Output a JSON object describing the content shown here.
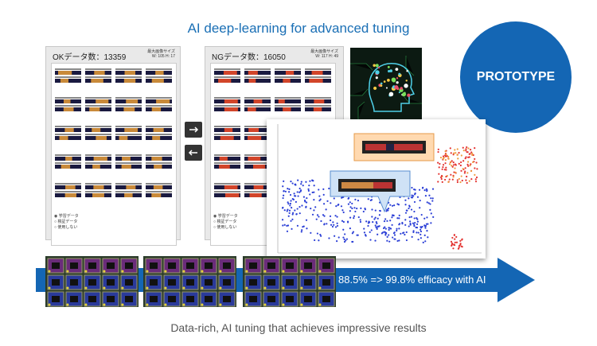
{
  "header": {
    "title": "AI deep-learning for advanced tuning"
  },
  "ok_panel": {
    "title": "OKデータ数：13359",
    "size_label": "最大画像サイズ",
    "size_value": "W: 105  H: 17"
  },
  "ng_panel": {
    "title": "NGデータ数：16050",
    "size_label": "最大画像サイズ",
    "size_value": "W: 117  H: 49"
  },
  "radio_options": [
    "学習データ",
    "検証データ",
    "使用しない"
  ],
  "badge": "PROTOTYPE",
  "banner": "88.5% => 99.8% efficacy with AI",
  "caption": "Data-rich, AI tuning that achieves impressive results"
}
